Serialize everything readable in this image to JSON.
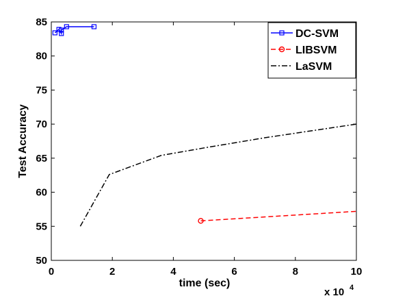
{
  "chart_data": {
    "type": "line",
    "title": "",
    "xlabel": "time (sec)",
    "ylabel": "Test Accuracy",
    "x_exponent_label": "x 10",
    "x_exponent_power": "4",
    "xlim": [
      0,
      100000
    ],
    "ylim": [
      50,
      85
    ],
    "x_ticks": [
      0,
      20000,
      40000,
      60000,
      80000,
      100000
    ],
    "x_tick_labels": [
      "0",
      "2",
      "4",
      "6",
      "8",
      "10"
    ],
    "y_ticks": [
      50,
      55,
      60,
      65,
      70,
      75,
      80,
      85
    ],
    "y_tick_labels": [
      "50",
      "55",
      "60",
      "65",
      "70",
      "75",
      "80",
      "85"
    ],
    "grid": false,
    "legend_position": "top-right",
    "series": [
      {
        "name": "DC-SVM",
        "color": "#0000ff",
        "line_style": "solid",
        "marker": "square",
        "x": [
          1200,
          2500,
          3300,
          3300,
          5000,
          14000
        ],
        "y": [
          83.4,
          83.9,
          83.3,
          83.8,
          84.3,
          84.3
        ]
      },
      {
        "name": "LIBSVM",
        "color": "#ff0000",
        "line_style": "dashed",
        "marker": "circle",
        "x": [
          49000,
          100000
        ],
        "y": [
          55.8,
          57.2
        ]
      },
      {
        "name": "LaSVM",
        "color": "#000000",
        "line_style": "dashdot",
        "marker": "none",
        "x": [
          9500,
          19000,
          36000,
          50000,
          70000,
          100000
        ],
        "y": [
          55.0,
          62.6,
          65.4,
          66.5,
          68.0,
          70.0
        ]
      }
    ]
  }
}
